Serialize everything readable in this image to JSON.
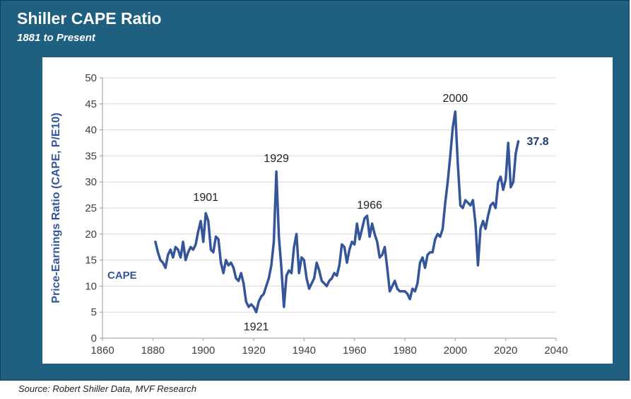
{
  "header": {
    "title": "Shiller CAPE Ratio",
    "subtitle": "1881 to Present"
  },
  "footer": {
    "source": "Source: Robert Shiller Data, MVF Research"
  },
  "colors": {
    "frame": "#1f5f80",
    "line": "#34559a",
    "axis_text": "#404040",
    "grid": "#d9d9d9"
  },
  "chart_data": {
    "type": "line",
    "title": "",
    "ylabel": "Price-Earnings Ratio (CAPE, P/E10)",
    "xlabel": "",
    "xlim": [
      1860,
      2040
    ],
    "ylim": [
      0,
      50
    ],
    "xticks": [
      1860,
      1880,
      1900,
      1920,
      1940,
      1960,
      1980,
      2000,
      2020,
      2040
    ],
    "yticks": [
      0,
      5,
      10,
      15,
      20,
      25,
      30,
      35,
      40,
      45,
      50
    ],
    "grid": "horizontal",
    "series": [
      {
        "name": "CAPE",
        "color": "#34559a",
        "x": [
          1881,
          1882,
          1883,
          1884,
          1885,
          1886,
          1887,
          1888,
          1889,
          1890,
          1891,
          1892,
          1893,
          1894,
          1895,
          1896,
          1897,
          1898,
          1899,
          1900,
          1901,
          1902,
          1903,
          1904,
          1905,
          1906,
          1907,
          1908,
          1909,
          1910,
          1911,
          1912,
          1913,
          1914,
          1915,
          1916,
          1917,
          1918,
          1919,
          1920,
          1921,
          1922,
          1923,
          1924,
          1925,
          1926,
          1927,
          1928,
          1929,
          1930,
          1931,
          1932,
          1933,
          1934,
          1935,
          1936,
          1937,
          1938,
          1939,
          1940,
          1941,
          1942,
          1943,
          1944,
          1945,
          1946,
          1947,
          1948,
          1949,
          1950,
          1951,
          1952,
          1953,
          1954,
          1955,
          1956,
          1957,
          1958,
          1959,
          1960,
          1961,
          1962,
          1963,
          1964,
          1965,
          1966,
          1967,
          1968,
          1969,
          1970,
          1971,
          1972,
          1973,
          1974,
          1975,
          1976,
          1977,
          1978,
          1979,
          1980,
          1981,
          1982,
          1983,
          1984,
          1985,
          1986,
          1987,
          1988,
          1989,
          1990,
          1991,
          1992,
          1993,
          1994,
          1995,
          1996,
          1997,
          1998,
          1999,
          2000,
          2001,
          2002,
          2003,
          2004,
          2005,
          2006,
          2007,
          2008,
          2009,
          2010,
          2011,
          2012,
          2013,
          2014,
          2015,
          2016,
          2017,
          2018,
          2019,
          2020,
          2021,
          2022,
          2023,
          2024,
          2025
        ],
        "values": [
          18.5,
          16.5,
          15.0,
          14.5,
          13.5,
          16.0,
          17.0,
          15.5,
          17.5,
          17.0,
          15.5,
          18.5,
          15.0,
          16.5,
          17.5,
          17.0,
          18.0,
          20.5,
          22.5,
          18.5,
          24.0,
          22.5,
          17.0,
          16.5,
          19.5,
          19.0,
          14.5,
          12.5,
          15.0,
          14.0,
          14.5,
          13.5,
          11.5,
          11.0,
          12.5,
          10.5,
          7.0,
          6.0,
          6.5,
          6.0,
          5.0,
          7.0,
          8.0,
          8.5,
          10.0,
          11.5,
          14.0,
          18.5,
          32.0,
          19.5,
          13.5,
          6.0,
          12.0,
          13.0,
          12.5,
          17.5,
          20.0,
          12.5,
          15.5,
          15.0,
          11.5,
          9.5,
          10.5,
          11.5,
          14.5,
          13.0,
          11.0,
          10.5,
          10.0,
          11.0,
          11.5,
          12.5,
          12.0,
          14.0,
          18.0,
          17.5,
          14.5,
          17.0,
          18.5,
          18.0,
          22.0,
          19.0,
          21.0,
          23.0,
          23.5,
          19.5,
          22.0,
          20.0,
          18.5,
          15.5,
          16.0,
          17.5,
          13.5,
          9.0,
          10.0,
          11.0,
          9.5,
          9.0,
          9.0,
          9.0,
          8.5,
          7.5,
          9.5,
          9.0,
          10.5,
          14.5,
          15.5,
          13.5,
          16.0,
          16.5,
          16.5,
          19.0,
          20.0,
          19.5,
          21.0,
          26.0,
          30.0,
          35.0,
          40.5,
          43.5,
          33.5,
          25.5,
          25.0,
          26.5,
          26.0,
          25.5,
          26.5,
          22.0,
          14.0,
          21.0,
          22.5,
          21.0,
          23.5,
          25.5,
          26.0,
          25.0,
          30.0,
          31.0,
          28.5,
          30.5,
          37.5,
          29.0,
          30.0,
          35.5,
          37.8
        ]
      }
    ],
    "series_label": "CAPE",
    "annotations": [
      {
        "text": "1901",
        "x": 1901,
        "y": 25,
        "position": "above"
      },
      {
        "text": "1929",
        "x": 1929,
        "y": 32.5,
        "position": "above"
      },
      {
        "text": "1921",
        "x": 1921,
        "y": 5,
        "position": "below"
      },
      {
        "text": "1966",
        "x": 1966,
        "y": 23.5,
        "position": "above"
      },
      {
        "text": "2000",
        "x": 2000,
        "y": 44,
        "position": "above"
      },
      {
        "text": "37.8",
        "x": 2025,
        "y": 37.8,
        "position": "right"
      }
    ]
  }
}
